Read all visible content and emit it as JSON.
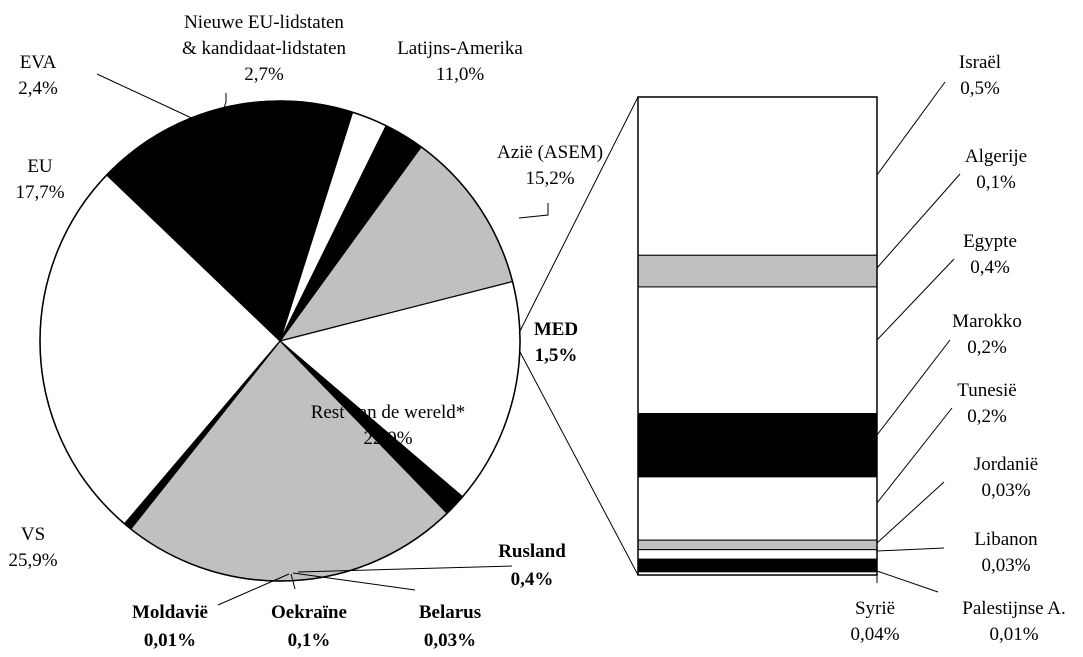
{
  "chart_data": [
    {
      "type": "pie",
      "slices": [
        {
          "label_lines": [
            "Latijns-Amerika",
            "11,0%"
          ],
          "value": 11.0,
          "color": "#c0c0c0",
          "bold": false
        },
        {
          "label_lines": [
            "Azië (ASEM)",
            "15,2%"
          ],
          "value": 15.2,
          "color": "#ffffff",
          "bold": false
        },
        {
          "label_lines": [
            "MED",
            "1,5%"
          ],
          "value": 1.5,
          "color": "#000000",
          "bold": true
        },
        {
          "label_lines": [
            "Rest van de wereld*",
            "22,9%"
          ],
          "value": 22.9,
          "color": "#c0c0c0",
          "bold": false
        },
        {
          "label_lines": [
            "Rusland",
            "0,4%"
          ],
          "value": 0.4,
          "color": "#000000",
          "bold": true
        },
        {
          "label_lines": [
            "Belarus",
            "0,03%"
          ],
          "value": 0.03,
          "color": "#ffffff",
          "bold": true
        },
        {
          "label_lines": [
            "Oekraïne",
            "0,1%"
          ],
          "value": 0.1,
          "color": "#000000",
          "bold": true
        },
        {
          "label_lines": [
            "Moldavië",
            "0,01%"
          ],
          "value": 0.01,
          "color": "#ffffff",
          "bold": true
        },
        {
          "label_lines": [
            "VS",
            "25,9%"
          ],
          "value": 25.9,
          "color": "#ffffff",
          "bold": false
        },
        {
          "label_lines": [
            "EU",
            "17,7%"
          ],
          "value": 17.7,
          "color": "#000000",
          "bold": false
        },
        {
          "label_lines": [
            "EVA",
            "2,4%"
          ],
          "value": 2.4,
          "color": "#ffffff",
          "bold": false
        },
        {
          "label_lines": [
            "Nieuwe EU-lidstaten",
            "& kandidaat-lidstaten",
            "2,7%"
          ],
          "value": 2.7,
          "color": "#000000",
          "bold": false
        }
      ]
    },
    {
      "type": "bar",
      "stacked": true,
      "segments": [
        {
          "label_lines": [
            "Israël",
            "0,5%"
          ],
          "value": 0.5,
          "color": "#ffffff"
        },
        {
          "label_lines": [
            "Algerije",
            "0,1%"
          ],
          "value": 0.1,
          "color": "#c0c0c0"
        },
        {
          "label_lines": [
            "Egypte",
            "0,4%"
          ],
          "value": 0.4,
          "color": "#ffffff"
        },
        {
          "label_lines": [
            "Marokko",
            "0,2%"
          ],
          "value": 0.2,
          "color": "#000000"
        },
        {
          "label_lines": [
            "Tunesië",
            "0,2%"
          ],
          "value": 0.2,
          "color": "#ffffff"
        },
        {
          "label_lines": [
            "Jordanië",
            "0,03%"
          ],
          "value": 0.03,
          "color": "#c0c0c0"
        },
        {
          "label_lines": [
            "Libanon",
            "0,03%"
          ],
          "value": 0.03,
          "color": "#ffffff"
        },
        {
          "label_lines": [
            "Syrië",
            "0,04%"
          ],
          "value": 0.04,
          "color": "#000000"
        },
        {
          "label_lines": [
            "Palestijnse A.",
            "0,01%"
          ],
          "value": 0.01,
          "color": "#ffffff"
        }
      ]
    }
  ]
}
